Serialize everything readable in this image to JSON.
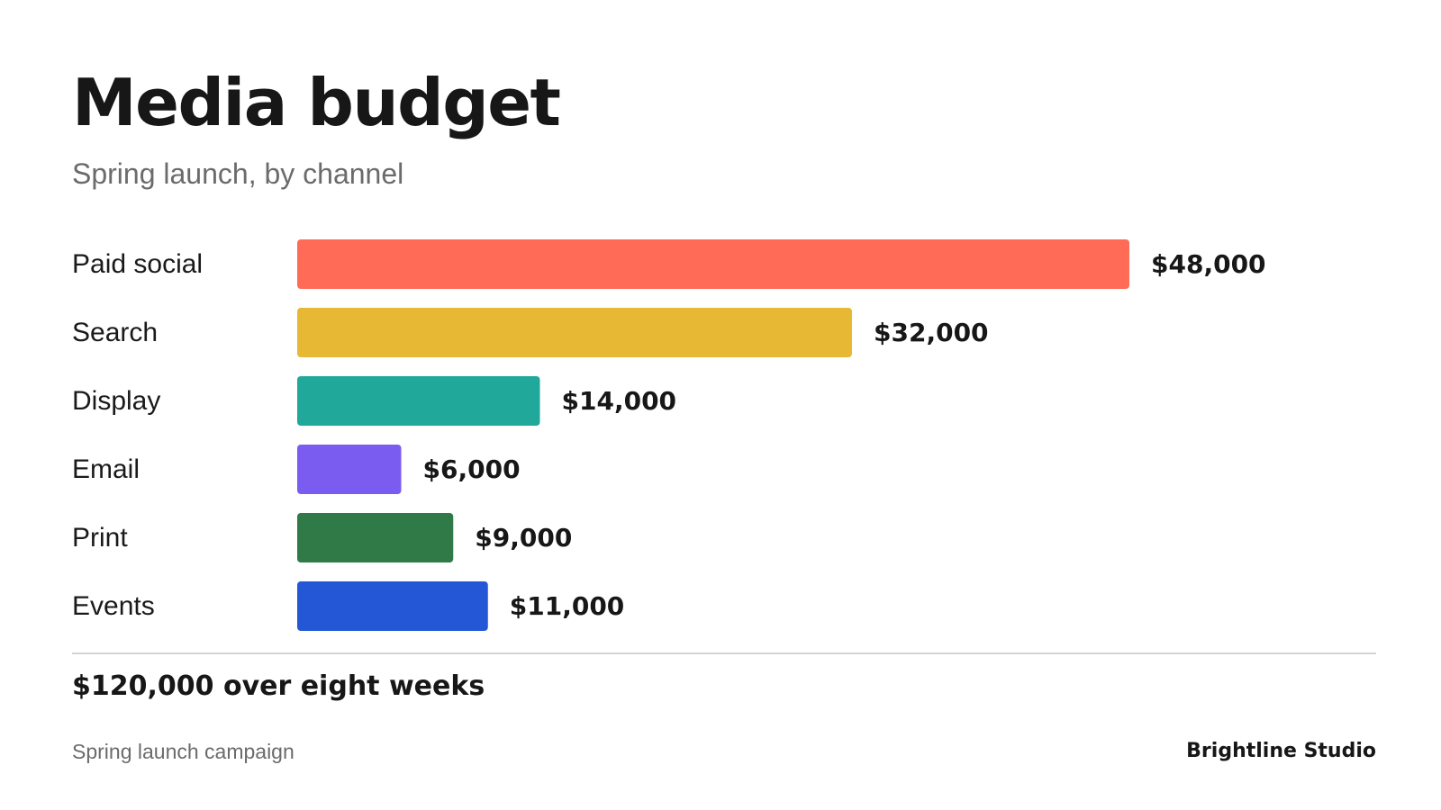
{
  "header": {
    "title": "Media budget",
    "subtitle": "Spring launch, by channel"
  },
  "chart_data": {
    "type": "bar",
    "orientation": "horizontal",
    "title": "Media budget",
    "subtitle": "Spring launch, by channel",
    "categories": [
      "Paid social",
      "Search",
      "Display",
      "Email",
      "Print",
      "Events"
    ],
    "values": [
      48000,
      32000,
      14000,
      6000,
      9000,
      11000
    ],
    "value_labels": [
      "$48,000",
      "$32,000",
      "$14,000",
      "$6,000",
      "$9,000",
      "$11,000"
    ],
    "colors": [
      "#ff6b57",
      "#e6b833",
      "#20a89a",
      "#7b5cf0",
      "#2f7a47",
      "#2357d6"
    ],
    "xlim": [
      0,
      48000
    ],
    "grid": false,
    "legend": "none",
    "xlabel": "",
    "ylabel": ""
  },
  "summary": {
    "total": "$120,000 over eight weeks"
  },
  "footer": {
    "source": "Spring launch campaign",
    "brand": "Brightline Studio"
  }
}
